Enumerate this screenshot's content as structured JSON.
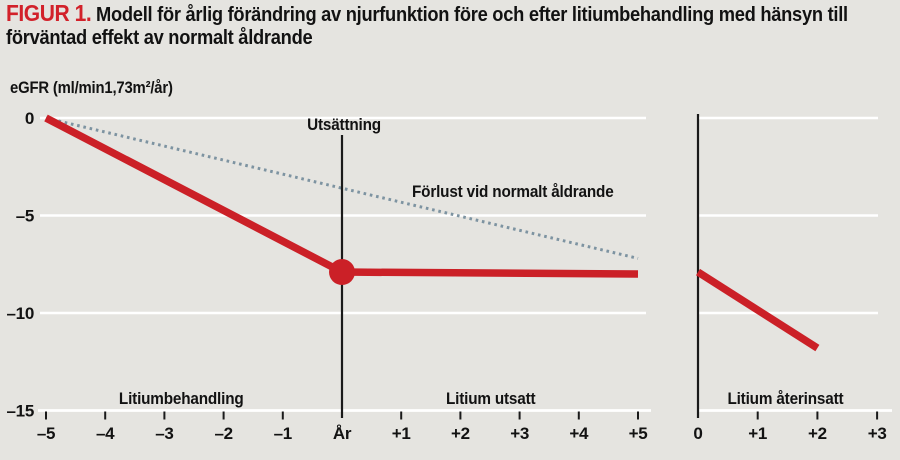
{
  "title": {
    "label": "FIGUR 1.",
    "text": "Modell för årlig förändring av njurfunktion före och efter litiumbehandling med hänsyn till förväntad effekt av normalt åldrande"
  },
  "y_axis_label": "eGFR (ml/min1,73m²/år)",
  "labels": {
    "utsattning": "Utsättning",
    "forlust": "Förlust vid normalt åldrande",
    "litiumbehandling": "Litiumbehandling",
    "litium_utsatt": "Litium utsatt",
    "litium_aterinsatt": "Litium återinsatt"
  },
  "colors": {
    "background": "#e5e4e0",
    "accent_red": "#cb2027",
    "dotted_line": "#7d93a1",
    "grid": "#ffffff",
    "text": "#121212",
    "axis_black": "#1a1a1a"
  },
  "chart_data": {
    "type": "line",
    "title": "Modell för årlig förändring av njurfunktion före och efter litiumbehandling med hänsyn till förväntad effekt av normalt åldrande",
    "ylabel": "eGFR (ml/min1,73m²/år)",
    "ylim": [
      -15,
      0
    ],
    "grid": true,
    "gridline_values": [
      0,
      -5,
      -10
    ],
    "y_ticks": [
      {
        "v": 0,
        "label": "0"
      },
      {
        "v": -5,
        "label": "–5"
      },
      {
        "v": -10,
        "label": "–10"
      },
      {
        "v": -15,
        "label": "–15"
      }
    ],
    "panels": [
      {
        "name": "litium-behandling-och-utsattning",
        "xlim": [
          -5,
          5
        ],
        "x_ticks": [
          {
            "pos": -5,
            "label": "–5"
          },
          {
            "pos": -4,
            "label": "–4"
          },
          {
            "pos": -3,
            "label": "–3"
          },
          {
            "pos": -2,
            "label": "–2"
          },
          {
            "pos": -1,
            "label": "–1"
          },
          {
            "pos": 0,
            "label": "År",
            "tick": false
          },
          {
            "pos": 1,
            "label": "+1"
          },
          {
            "pos": 2,
            "label": "+2"
          },
          {
            "pos": 3,
            "label": "+3"
          },
          {
            "pos": 4,
            "label": "+4"
          },
          {
            "pos": 5,
            "label": "+5"
          }
        ],
        "series": [
          {
            "name": "egfr-forandring-med-litium",
            "style": "solid",
            "color": "#cb2027",
            "points": [
              [
                -5,
                0
              ],
              [
                0,
                -7.9
              ],
              [
                5,
                -8
              ]
            ]
          },
          {
            "name": "forlust-vid-normalt-aldrande",
            "style": "dotted",
            "color": "#7d93a1",
            "points": [
              [
                -5,
                0
              ],
              [
                5,
                -7.2
              ]
            ]
          }
        ],
        "marker": {
          "x": 0,
          "y": -7.9
        },
        "vline": {
          "pos": 0,
          "label": "Utsättning"
        },
        "region_labels": [
          "Litiumbehandling",
          "Litium utsatt"
        ]
      },
      {
        "name": "litium-aterinsatt",
        "xlim": [
          0,
          3
        ],
        "x_ticks": [
          {
            "pos": 0,
            "label": "0",
            "tick": false
          },
          {
            "pos": 1,
            "label": "+1"
          },
          {
            "pos": 2,
            "label": "+2"
          },
          {
            "pos": 3,
            "label": "+3"
          }
        ],
        "series": [
          {
            "name": "egfr-forandring-efter-aterinsattning",
            "style": "solid",
            "color": "#cb2027",
            "points": [
              [
                0,
                -7.9
              ],
              [
                2,
                -11.8
              ]
            ]
          }
        ],
        "vline": {
          "pos": 0,
          "label": ""
        },
        "region_labels": [
          "Litium återinsatt"
        ]
      }
    ],
    "annotations": [
      {
        "text": "Utsättning",
        "at": "vertical line, year 0"
      },
      {
        "text": "Förlust vid normalt åldrande",
        "at": "dotted line"
      }
    ],
    "legend_position": "none"
  }
}
